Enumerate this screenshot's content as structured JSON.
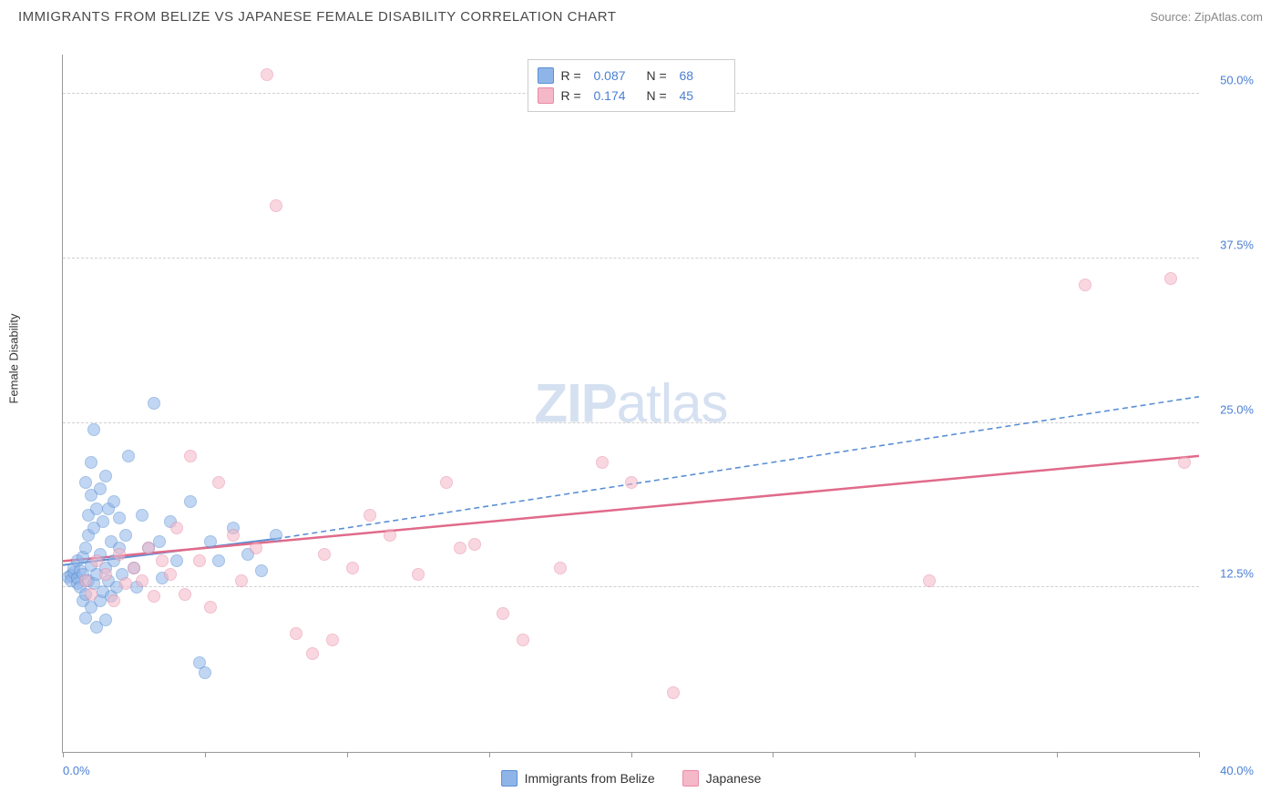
{
  "header": {
    "title": "IMMIGRANTS FROM BELIZE VS JAPANESE FEMALE DISABILITY CORRELATION CHART",
    "source": "Source: ZipAtlas.com"
  },
  "chart": {
    "type": "scatter",
    "y_axis_label": "Female Disability",
    "watermark_bold": "ZIP",
    "watermark_rest": "atlas",
    "xlim": [
      0,
      40
    ],
    "ylim": [
      0,
      53
    ],
    "x_ticks": [
      0,
      5,
      10,
      15,
      20,
      25,
      30,
      35,
      40
    ],
    "x_tick_labels_shown": {
      "0": "0.0%",
      "40": "40.0%"
    },
    "y_gridlines": [
      12.5,
      25.0,
      37.5,
      50.0
    ],
    "y_tick_labels": [
      "12.5%",
      "25.0%",
      "37.5%",
      "50.0%"
    ],
    "background_color": "#ffffff",
    "grid_color": "#d0d0d0",
    "axis_color": "#999999",
    "tick_label_color": "#4a7fd4",
    "marker_radius": 7,
    "marker_opacity": 0.55,
    "series": [
      {
        "id": "belize",
        "label": "Immigrants from Belize",
        "fill_color": "#8fb5e8",
        "stroke_color": "#5a8fd4",
        "r_label": "R =",
        "r_value": "0.087",
        "n_label": "N =",
        "n_value": "68",
        "trend": {
          "x1": 0,
          "y1": 14.2,
          "x2": 7.5,
          "y2": 16.2,
          "dash_x1": 7.5,
          "dash_y1": 16.2,
          "dash_x2": 40,
          "dash_y2": 27.0,
          "color": "#5a8fd4",
          "width": 2
        },
        "points": [
          [
            0.2,
            13.3
          ],
          [
            0.3,
            13.4
          ],
          [
            0.3,
            13.0
          ],
          [
            0.4,
            13.6
          ],
          [
            0.4,
            14.0
          ],
          [
            0.5,
            12.8
          ],
          [
            0.5,
            13.2
          ],
          [
            0.5,
            14.5
          ],
          [
            0.6,
            12.5
          ],
          [
            0.6,
            13.8
          ],
          [
            0.7,
            11.5
          ],
          [
            0.7,
            13.5
          ],
          [
            0.7,
            14.8
          ],
          [
            0.8,
            12.0
          ],
          [
            0.8,
            15.5
          ],
          [
            0.8,
            10.2
          ],
          [
            0.8,
            20.5
          ],
          [
            0.9,
            13.0
          ],
          [
            0.9,
            16.5
          ],
          [
            0.9,
            18.0
          ],
          [
            1.0,
            11.0
          ],
          [
            1.0,
            14.2
          ],
          [
            1.0,
            19.5
          ],
          [
            1.0,
            22.0
          ],
          [
            1.1,
            12.8
          ],
          [
            1.1,
            17.0
          ],
          [
            1.1,
            24.5
          ],
          [
            1.2,
            9.5
          ],
          [
            1.2,
            13.5
          ],
          [
            1.2,
            18.5
          ],
          [
            1.3,
            11.5
          ],
          [
            1.3,
            15.0
          ],
          [
            1.3,
            20.0
          ],
          [
            1.4,
            12.2
          ],
          [
            1.4,
            17.5
          ],
          [
            1.5,
            10.0
          ],
          [
            1.5,
            14.0
          ],
          [
            1.5,
            21.0
          ],
          [
            1.6,
            13.0
          ],
          [
            1.6,
            18.5
          ],
          [
            1.7,
            11.8
          ],
          [
            1.7,
            16.0
          ],
          [
            1.8,
            14.5
          ],
          [
            1.8,
            19.0
          ],
          [
            1.9,
            12.5
          ],
          [
            2.0,
            15.5
          ],
          [
            2.0,
            17.8
          ],
          [
            2.1,
            13.5
          ],
          [
            2.2,
            16.5
          ],
          [
            2.3,
            22.5
          ],
          [
            2.5,
            14.0
          ],
          [
            2.6,
            12.5
          ],
          [
            2.8,
            18.0
          ],
          [
            3.0,
            15.5
          ],
          [
            3.2,
            26.5
          ],
          [
            3.4,
            16.0
          ],
          [
            3.5,
            13.2
          ],
          [
            3.8,
            17.5
          ],
          [
            4.0,
            14.5
          ],
          [
            4.5,
            19.0
          ],
          [
            4.8,
            6.8
          ],
          [
            5.0,
            6.0
          ],
          [
            5.2,
            16.0
          ],
          [
            5.5,
            14.5
          ],
          [
            6.0,
            17.0
          ],
          [
            6.5,
            15.0
          ],
          [
            7.0,
            13.8
          ],
          [
            7.5,
            16.5
          ]
        ]
      },
      {
        "id": "japanese",
        "label": "Japanese",
        "fill_color": "#f5b8c8",
        "stroke_color": "#e88aa5",
        "r_label": "R =",
        "r_value": "0.174",
        "n_label": "N =",
        "n_value": "45",
        "trend": {
          "x1": 0,
          "y1": 14.5,
          "x2": 40,
          "y2": 22.5,
          "color": "#e06a8a",
          "width": 2.5
        },
        "points": [
          [
            0.8,
            13.0
          ],
          [
            1.0,
            12.0
          ],
          [
            1.2,
            14.5
          ],
          [
            1.5,
            13.5
          ],
          [
            1.8,
            11.5
          ],
          [
            2.0,
            15.0
          ],
          [
            2.2,
            12.8
          ],
          [
            2.5,
            14.0
          ],
          [
            2.8,
            13.0
          ],
          [
            3.0,
            15.5
          ],
          [
            3.2,
            11.8
          ],
          [
            3.5,
            14.5
          ],
          [
            3.8,
            13.5
          ],
          [
            4.0,
            17.0
          ],
          [
            4.3,
            12.0
          ],
          [
            4.5,
            22.5
          ],
          [
            4.8,
            14.5
          ],
          [
            5.2,
            11.0
          ],
          [
            5.5,
            20.5
          ],
          [
            6.0,
            16.5
          ],
          [
            6.3,
            13.0
          ],
          [
            6.8,
            15.5
          ],
          [
            7.2,
            51.5
          ],
          [
            7.5,
            41.5
          ],
          [
            8.2,
            9.0
          ],
          [
            8.8,
            7.5
          ],
          [
            9.2,
            15.0
          ],
          [
            9.5,
            8.5
          ],
          [
            10.2,
            14.0
          ],
          [
            10.8,
            18.0
          ],
          [
            11.5,
            16.5
          ],
          [
            12.5,
            13.5
          ],
          [
            13.5,
            20.5
          ],
          [
            14.0,
            15.5
          ],
          [
            14.5,
            15.8
          ],
          [
            15.5,
            10.5
          ],
          [
            16.2,
            8.5
          ],
          [
            17.5,
            14.0
          ],
          [
            19.0,
            22.0
          ],
          [
            20.0,
            20.5
          ],
          [
            21.5,
            4.5
          ],
          [
            30.5,
            13.0
          ],
          [
            36.0,
            35.5
          ],
          [
            39.0,
            36.0
          ],
          [
            39.5,
            22.0
          ]
        ]
      }
    ],
    "legend_bottom": [
      {
        "ref": "belize"
      },
      {
        "ref": "japanese"
      }
    ]
  }
}
